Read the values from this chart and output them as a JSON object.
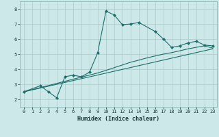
{
  "xlabel": "Humidex (Indice chaleur)",
  "bg_color": "#cce8e8",
  "grid_color": "#aacccc",
  "line_color": "#1a6e6a",
  "xlim": [
    -0.5,
    23.5
  ],
  "ylim": [
    1.5,
    8.5
  ],
  "xticks": [
    0,
    1,
    2,
    3,
    4,
    5,
    6,
    7,
    8,
    9,
    10,
    11,
    12,
    13,
    14,
    15,
    16,
    17,
    18,
    19,
    20,
    21,
    22,
    23
  ],
  "yticks": [
    2,
    3,
    4,
    5,
    6,
    7,
    8
  ],
  "line1_x": [
    0,
    2,
    3,
    4,
    5,
    6,
    7,
    8,
    9,
    10,
    11,
    12,
    13,
    14,
    16,
    17,
    18,
    19,
    20,
    21,
    22,
    23
  ],
  "line1_y": [
    2.5,
    2.9,
    2.5,
    2.1,
    3.5,
    3.6,
    3.5,
    3.8,
    5.1,
    7.85,
    7.6,
    6.95,
    7.0,
    7.1,
    6.5,
    6.0,
    5.45,
    5.55,
    5.75,
    5.85,
    5.6,
    5.55
  ],
  "line2_x": [
    0,
    23
  ],
  "line2_y": [
    2.5,
    5.35
  ],
  "line3_x": [
    0,
    9,
    10,
    11,
    12,
    13,
    14,
    15,
    16,
    17,
    18,
    19,
    20,
    21,
    22,
    23
  ],
  "line3_y": [
    2.5,
    3.75,
    3.92,
    4.1,
    4.28,
    4.46,
    4.6,
    4.75,
    4.88,
    5.0,
    5.1,
    5.22,
    5.35,
    5.45,
    5.55,
    5.4
  ],
  "xlabel_fontsize": 6,
  "tick_fontsize": 5,
  "line_width": 0.8,
  "marker_size": 2.2
}
